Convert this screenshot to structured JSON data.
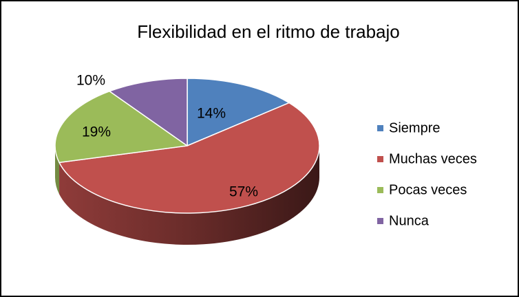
{
  "chart_data": {
    "type": "pie",
    "title": "Flexibilidad en el ritmo de trabajo",
    "categories": [
      "Siempre",
      "Muchas veces",
      "Pocas veces",
      "Nunca"
    ],
    "values": [
      14,
      57,
      19,
      10
    ],
    "value_labels": [
      "14%",
      "57%",
      "19%",
      "10%"
    ],
    "colors": [
      "#4f81bd",
      "#c0504d",
      "#9bbb59",
      "#8064a2"
    ],
    "legend": "right"
  }
}
